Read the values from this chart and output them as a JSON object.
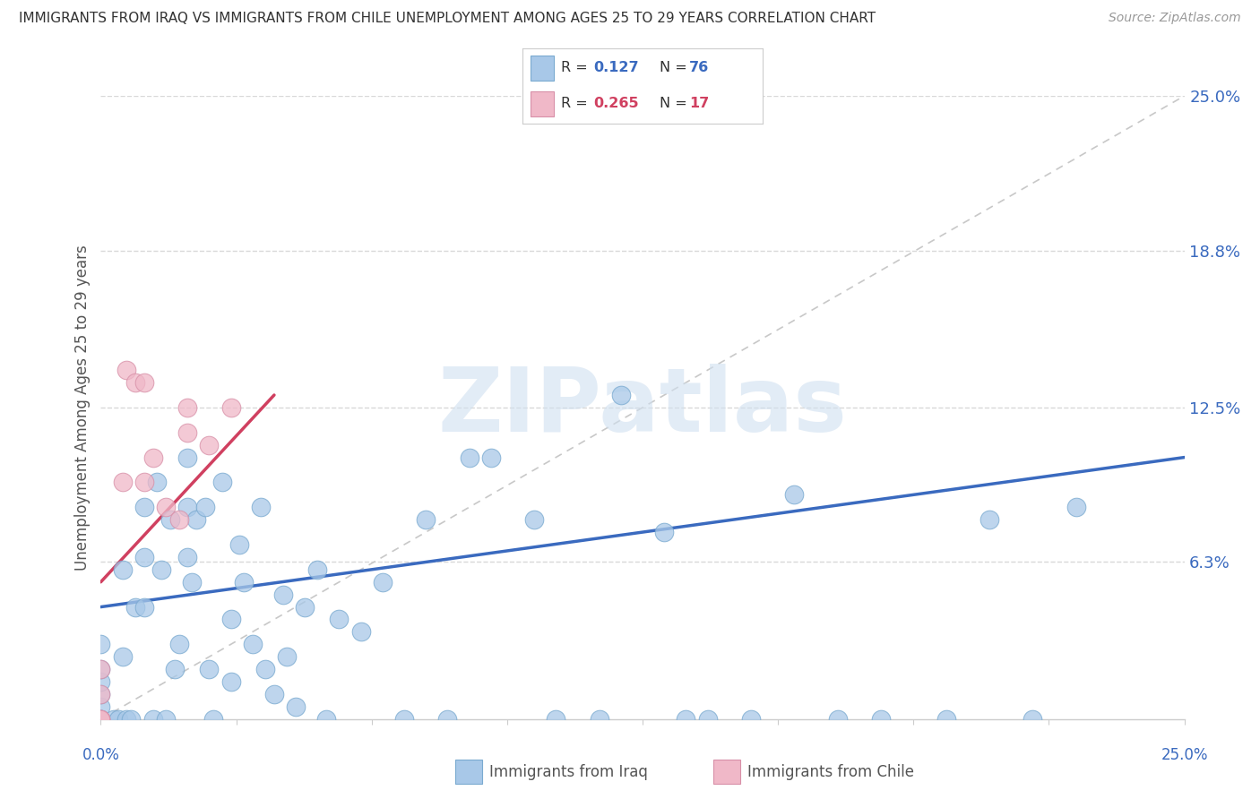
{
  "title": "IMMIGRANTS FROM IRAQ VS IMMIGRANTS FROM CHILE UNEMPLOYMENT AMONG AGES 25 TO 29 YEARS CORRELATION CHART",
  "source": "Source: ZipAtlas.com",
  "ylabel": "Unemployment Among Ages 25 to 29 years",
  "ytick_labels": [
    "6.3%",
    "12.5%",
    "18.8%",
    "25.0%"
  ],
  "ytick_values": [
    6.3,
    12.5,
    18.8,
    25.0
  ],
  "xlim": [
    0.0,
    25.0
  ],
  "ylim": [
    0.0,
    25.0
  ],
  "iraq_R": 0.127,
  "iraq_N": 76,
  "chile_R": 0.265,
  "chile_N": 17,
  "iraq_color": "#a8c8e8",
  "iraq_edge_color": "#7aaad0",
  "iraq_line_color": "#3a6abf",
  "chile_color": "#f0b8c8",
  "chile_edge_color": "#d890a8",
  "chile_line_color": "#d04060",
  "diag_color": "#c8c8c8",
  "grid_color": "#d8d8d8",
  "background_color": "#ffffff",
  "watermark_text": "ZIPatlas",
  "watermark_color": "#d0e0f0",
  "iraq_scatter_x": [
    0.0,
    0.0,
    0.0,
    0.0,
    0.0,
    0.0,
    0.0,
    0.0,
    0.0,
    0.0,
    0.0,
    0.0,
    0.0,
    0.3,
    0.4,
    0.5,
    0.5,
    0.6,
    0.7,
    0.8,
    1.0,
    1.0,
    1.0,
    1.2,
    1.3,
    1.4,
    1.5,
    1.6,
    1.7,
    1.8,
    2.0,
    2.0,
    2.0,
    2.1,
    2.2,
    2.4,
    2.5,
    2.6,
    2.8,
    3.0,
    3.0,
    3.2,
    3.3,
    3.5,
    3.7,
    3.8,
    4.0,
    4.2,
    4.3,
    4.5,
    4.7,
    5.0,
    5.2,
    5.5,
    6.0,
    6.5,
    7.0,
    7.5,
    8.0,
    8.5,
    9.0,
    10.0,
    10.5,
    11.5,
    12.0,
    13.0,
    13.5,
    14.0,
    15.0,
    16.0,
    17.0,
    18.0,
    19.5,
    20.5,
    21.5,
    22.5
  ],
  "iraq_scatter_y": [
    0.0,
    0.0,
    0.0,
    0.0,
    0.0,
    0.0,
    0.0,
    0.0,
    0.5,
    1.0,
    1.5,
    2.0,
    3.0,
    0.0,
    0.0,
    2.5,
    6.0,
    0.0,
    0.0,
    4.5,
    4.5,
    6.5,
    8.5,
    0.0,
    9.5,
    6.0,
    0.0,
    8.0,
    2.0,
    3.0,
    6.5,
    8.5,
    10.5,
    5.5,
    8.0,
    8.5,
    2.0,
    0.0,
    9.5,
    4.0,
    1.5,
    7.0,
    5.5,
    3.0,
    8.5,
    2.0,
    1.0,
    5.0,
    2.5,
    0.5,
    4.5,
    6.0,
    0.0,
    4.0,
    3.5,
    5.5,
    0.0,
    8.0,
    0.0,
    10.5,
    10.5,
    8.0,
    0.0,
    0.0,
    13.0,
    7.5,
    0.0,
    0.0,
    0.0,
    9.0,
    0.0,
    0.0,
    0.0,
    8.0,
    0.0,
    8.5
  ],
  "chile_scatter_x": [
    0.0,
    0.0,
    0.0,
    0.0,
    0.0,
    0.5,
    0.6,
    0.8,
    1.0,
    1.0,
    1.2,
    1.5,
    1.8,
    2.0,
    2.0,
    2.5,
    3.0
  ],
  "chile_scatter_y": [
    0.0,
    0.0,
    0.0,
    1.0,
    2.0,
    9.5,
    14.0,
    13.5,
    9.5,
    13.5,
    10.5,
    8.5,
    8.0,
    11.5,
    12.5,
    11.0,
    12.5
  ],
  "iraq_trendline_x": [
    0.0,
    25.0
  ],
  "iraq_trendline_y": [
    4.5,
    10.5
  ],
  "chile_trendline_x": [
    0.0,
    4.0
  ],
  "chile_trendline_y": [
    5.5,
    13.0
  ]
}
